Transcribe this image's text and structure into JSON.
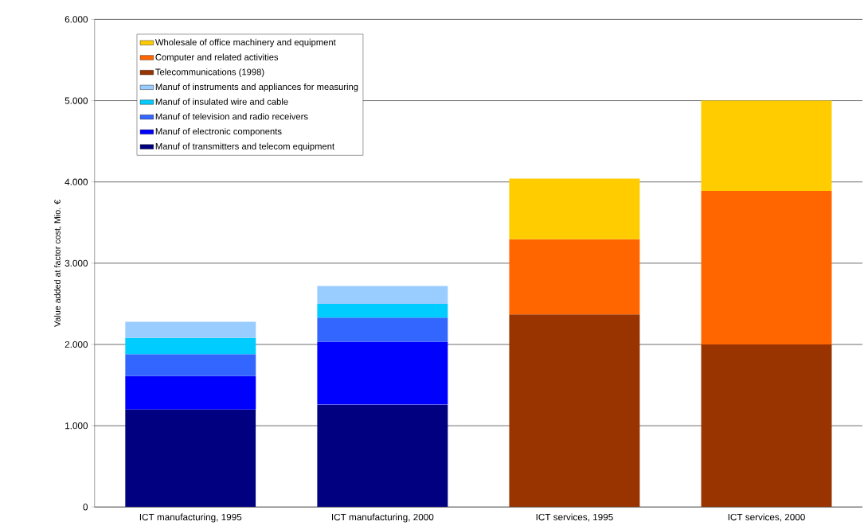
{
  "chart_data": {
    "type": "bar",
    "stacked": true,
    "ylabel": "Value added at factor cost, Mio. €",
    "categories": [
      "ICT manufacturing, 1995",
      "ICT manufacturing, 2000",
      "ICT services, 1995",
      "ICT services, 2000"
    ],
    "series": [
      {
        "name": "Manuf of transmitters and telecom equipment",
        "color": "#000080",
        "values": [
          1200,
          1260,
          null,
          null
        ]
      },
      {
        "name": "Manuf of electronic components",
        "color": "#0000ff",
        "values": [
          410,
          775,
          null,
          null
        ]
      },
      {
        "name": "Manuf of television and radio receivers",
        "color": "#3366ff",
        "values": [
          270,
          295,
          null,
          null
        ]
      },
      {
        "name": "Manuf of insulated wire and cable",
        "color": "#00ccff",
        "values": [
          200,
          170,
          null,
          null
        ]
      },
      {
        "name": "Manuf of instruments and appliances for measuring",
        "color": "#99ccff",
        "values": [
          200,
          220,
          null,
          null
        ]
      },
      {
        "name": "Telecommunications (1998)",
        "color": "#993300",
        "values": [
          null,
          null,
          2370,
          2000
        ]
      },
      {
        "name": "Computer and related activities",
        "color": "#ff6600",
        "values": [
          null,
          null,
          925,
          1890
        ]
      },
      {
        "name": "Wholesale of office machinery and equipment",
        "color": "#ffcc00",
        "values": [
          null,
          null,
          745,
          1110
        ]
      }
    ],
    "ylim": [
      0,
      6000
    ],
    "yticks": [
      0,
      {
        "value": 1000,
        "label": "1.000"
      },
      {
        "value": 2000,
        "label": "2.000"
      },
      {
        "value": 3000,
        "label": "3.000"
      },
      {
        "value": 4000,
        "label": "4.000"
      },
      {
        "value": 5000,
        "label": "5.000"
      },
      {
        "value": 6000,
        "label": "6.000"
      }
    ],
    "grid": "y",
    "legend": "top left"
  }
}
